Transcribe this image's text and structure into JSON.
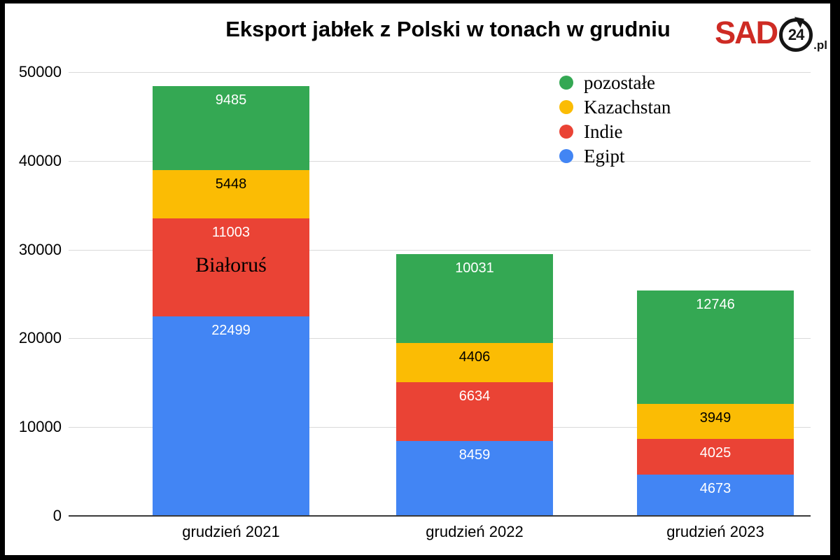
{
  "title": "Eksport jabłek z Polski w tonach w grudniu",
  "logo": {
    "brand": "SAD",
    "badge": "24",
    "suffix": ".pl",
    "brand_color": "#ce2b24",
    "badge_color": "#151515"
  },
  "chart_data": {
    "type": "bar",
    "stacked": true,
    "title": "Eksport jabłek z Polski w tonach w grudniu",
    "categories": [
      "grudzień 2021",
      "grudzień 2022",
      "grudzień 2023"
    ],
    "series": [
      {
        "name": "Egipt",
        "color": "#4285f4",
        "label_color": "#ffffff",
        "values": [
          22499,
          8459,
          4673
        ]
      },
      {
        "name": "Indie",
        "color": "#ea4335",
        "label_color": "#ffffff",
        "values": [
          11003,
          6634,
          4025
        ]
      },
      {
        "name": "Kazachstan",
        "color": "#fbbc04",
        "label_color": "#000000",
        "values": [
          5448,
          4406,
          3949
        ]
      },
      {
        "name": "pozostałe",
        "color": "#34a853",
        "label_color": "#ffffff",
        "values": [
          9485,
          10031,
          12746
        ]
      }
    ],
    "legend_order": [
      "pozostałe",
      "Kazachstan",
      "Indie",
      "Egipt"
    ],
    "legend_position": "top-right",
    "annotation": {
      "text": "Białoruś",
      "category_index": 0,
      "series_name": "Indie"
    },
    "xlabel": "",
    "ylabel": "",
    "ylim": [
      0,
      50000
    ],
    "y_ticks": [
      0,
      10000,
      20000,
      30000,
      40000,
      50000
    ],
    "grid": true,
    "axis_color": "#3a3a3a",
    "gridline_color": "#dadada"
  }
}
